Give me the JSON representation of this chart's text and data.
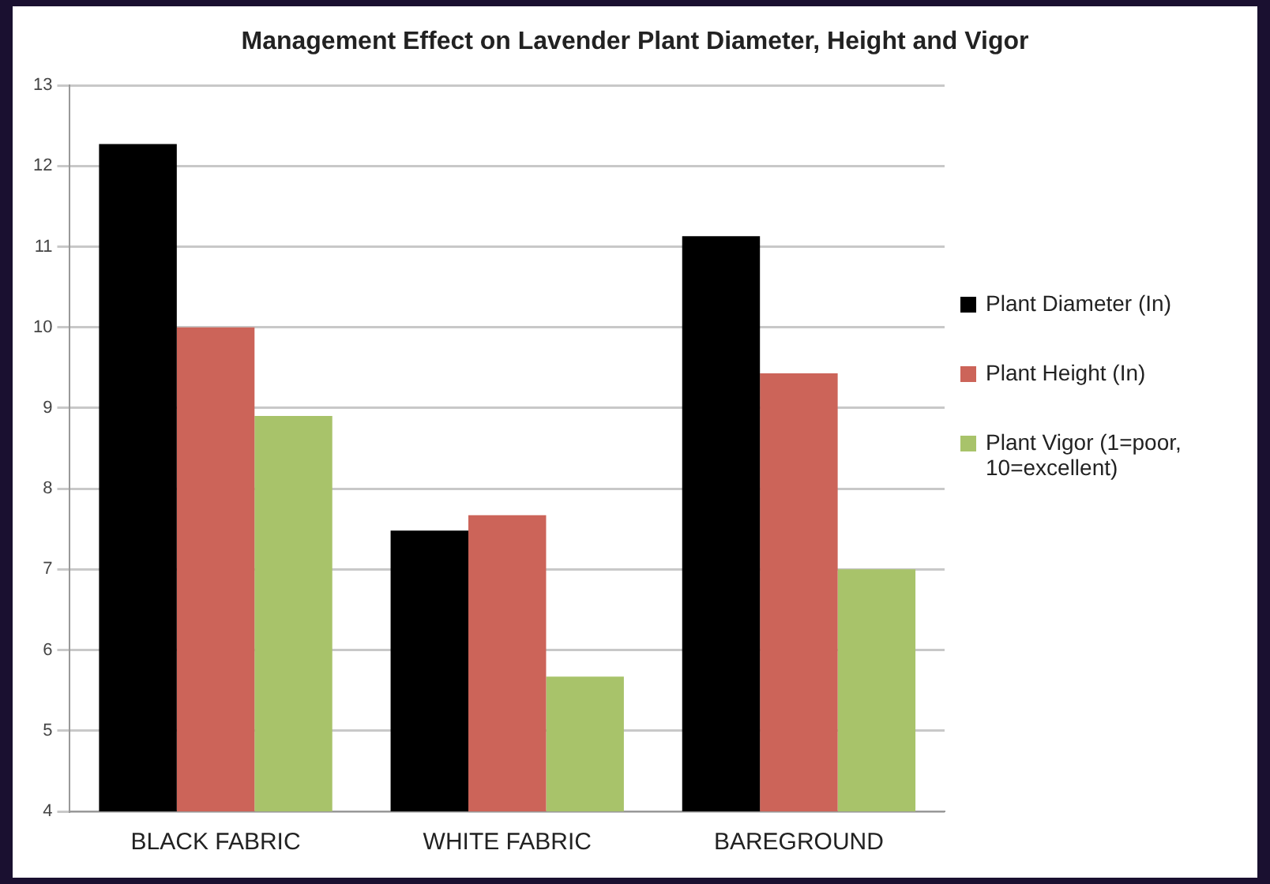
{
  "chart_data": {
    "type": "bar",
    "title": "Management Effect on Lavender Plant Diameter, Height and Vigor",
    "categories": [
      "BLACK FABRIC",
      "WHITE FABRIC",
      "BAREGROUND"
    ],
    "series": [
      {
        "name": "Plant Diameter (In)",
        "color": "#000000",
        "values": [
          12.27,
          7.48,
          11.13
        ]
      },
      {
        "name": "Plant Height (In)",
        "color": "#cc6459",
        "values": [
          10.0,
          7.67,
          9.43
        ]
      },
      {
        "name": "Plant Vigor (1=poor, 10=excellent)",
        "color": "#a8c36a",
        "values": [
          8.9,
          5.67,
          7.0
        ]
      }
    ],
    "ylim": [
      4,
      13
    ],
    "yticks": [
      4,
      5,
      6,
      7,
      8,
      9,
      10,
      11,
      12,
      13
    ],
    "grid": "y",
    "legend": "right"
  }
}
